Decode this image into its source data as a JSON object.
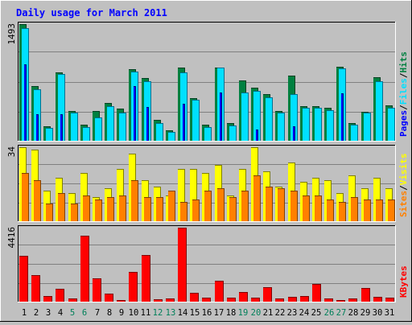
{
  "chart_data": {
    "type": "bar",
    "title": "Daily usage for March 2011",
    "categories": [
      "1",
      "2",
      "3",
      "4",
      "5",
      "6",
      "7",
      "8",
      "9",
      "10",
      "11",
      "12",
      "13",
      "14",
      "15",
      "16",
      "17",
      "18",
      "19",
      "20",
      "21",
      "22",
      "23",
      "24",
      "25",
      "26",
      "27",
      "28",
      "29",
      "30",
      "31"
    ],
    "weekend_days": [
      "5",
      "6",
      "12",
      "13",
      "19",
      "20",
      "26",
      "27"
    ],
    "panels": [
      {
        "name": "hits_files_pages",
        "ymax_label": "1493",
        "ymax": 1493,
        "side_labels": [
          "Pages",
          "Files",
          "Hits"
        ],
        "series": [
          {
            "name": "Hits",
            "color": "#008040",
            "values": [
              1493,
              700,
              190,
              880,
              380,
              210,
              380,
              480,
              410,
              920,
              800,
              270,
              130,
              935,
              550,
              210,
              940,
              230,
              770,
              680,
              600,
              380,
              830,
              440,
              440,
              420,
              950,
              225,
              375,
              810,
              450
            ]
          },
          {
            "name": "Files",
            "color": "#00E0FF",
            "values": [
              1440,
              660,
              160,
              850,
              360,
              170,
              300,
              440,
              360,
              890,
              760,
              230,
              110,
              880,
              520,
              180,
              935,
              200,
              620,
              640,
              560,
              360,
              600,
              420,
              420,
              390,
              930,
              210,
              360,
              760,
              420
            ]
          },
          {
            "name": "Pages",
            "color": "#0000FF",
            "values": [
              980,
              340,
              0,
              340,
              0,
              0,
              0,
              0,
              0,
              700,
              430,
              0,
              0,
              470,
              0,
              0,
              620,
              0,
              0,
              140,
              0,
              0,
              190,
              0,
              0,
              0,
              610,
              0,
              0,
              0,
              0
            ]
          }
        ]
      },
      {
        "name": "visits_sites",
        "ymax_label": "34",
        "ymax": 34,
        "side_labels": [
          "Sites",
          "Visits"
        ],
        "series": [
          {
            "name": "Visits",
            "color": "#FFFF00",
            "values": [
              34,
              33,
              14,
              20,
              13,
              22,
              11,
              15,
              24,
              31,
              19,
              16,
              12,
              24,
              24,
              22,
              26,
              12,
              24,
              34,
              23,
              16,
              27,
              18,
              20,
              19,
              13,
              21,
              15,
              20,
              15
            ]
          },
          {
            "name": "Sites",
            "color": "#FF8000",
            "values": [
              22,
              19,
              8,
              13,
              8,
              12,
              10,
              11,
              12,
              19,
              11,
              11,
              14,
              9,
              10,
              14,
              15,
              11,
              14,
              21,
              16,
              15,
              14,
              12,
              12,
              10,
              9,
              11,
              10,
              10,
              10
            ]
          }
        ]
      },
      {
        "name": "kbytes",
        "ymax_label": "4416",
        "ymax": 4416,
        "side_labels": [
          "KBytes"
        ],
        "series": [
          {
            "name": "KBytes",
            "color": "#FF0000",
            "values": [
              2750,
              1600,
              340,
              750,
              180,
              3950,
              1400,
              460,
              80,
              1780,
              2800,
              160,
              180,
              4416,
              520,
              240,
              1230,
              250,
              580,
              230,
              880,
              180,
              310,
              350,
              1050,
              190,
              80,
              180,
              800,
              300,
              220
            ]
          }
        ]
      }
    ]
  }
}
